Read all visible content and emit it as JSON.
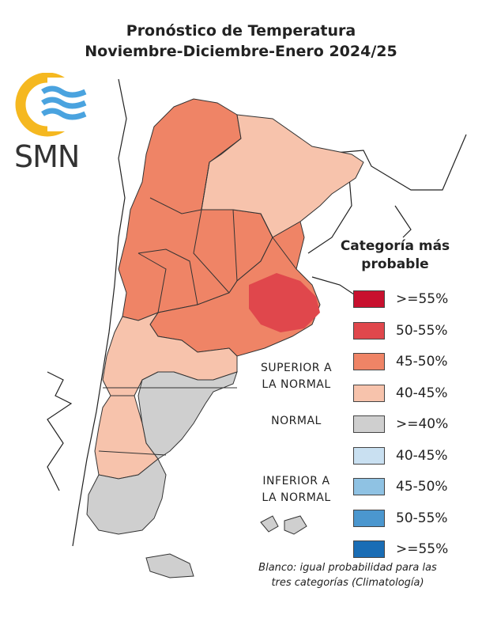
{
  "title": {
    "line1": "Pronóstico de Temperatura",
    "line2": "Noviembre-Diciembre-Enero 2024/25"
  },
  "logo": {
    "text": "SMN",
    "colors": {
      "sun": "#f5b820",
      "waves": "#4aa3df"
    }
  },
  "legend": {
    "title_line1": "Categoría más",
    "title_line2": "probable",
    "groups": [
      {
        "label_line1": "SUPERIOR A",
        "label_line2": "LA NORMAL"
      },
      {
        "label_line1": "NORMAL",
        "label_line2": ""
      },
      {
        "label_line1": "INFERIOR A",
        "label_line2": "LA NORMAL"
      }
    ],
    "items": [
      {
        "label": ">=55%",
        "color": "#c8102e"
      },
      {
        "label": "50-55%",
        "color": "#e0474c"
      },
      {
        "label": "45-50%",
        "color": "#ef8466"
      },
      {
        "label": "40-45%",
        "color": "#f7c3ac"
      },
      {
        "label": ">=40%",
        "color": "#cfcfcf"
      },
      {
        "label": "40-45%",
        "color": "#c9e0f1"
      },
      {
        "label": "45-50%",
        "color": "#8fc2e3"
      },
      {
        "label": "50-55%",
        "color": "#4b97cf"
      },
      {
        "label": ">=55%",
        "color": "#1a6db5"
      }
    ]
  },
  "footnote": {
    "line1": "Blanco: igual probabilidad para las",
    "line2": "tres categorías (Climatología)"
  }
}
